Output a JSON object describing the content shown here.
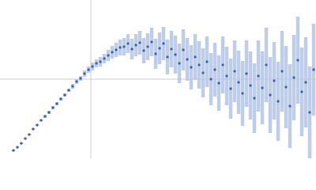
{
  "chart_data": {
    "type": "scatter",
    "xlim": [
      0,
      400
    ],
    "ylim": [
      0,
      200
    ],
    "vline": 115,
    "hline": 100,
    "color": "#3a62b8",
    "error_color": "#aec3e6",
    "x": [
      17,
      22,
      27,
      32,
      37,
      42,
      47,
      52,
      57,
      62,
      67,
      72,
      77,
      82,
      87,
      92,
      97,
      102,
      107,
      112,
      117,
      122,
      127,
      132,
      137,
      142,
      147,
      152,
      157,
      162,
      167,
      172,
      177,
      182,
      187,
      192,
      197,
      202,
      207,
      212,
      217,
      222,
      227,
      232,
      237,
      242,
      247,
      252,
      257,
      262,
      267,
      272,
      277,
      282,
      287,
      292,
      297,
      302,
      307,
      312,
      317,
      322,
      327,
      332,
      337,
      342,
      347,
      352,
      357,
      362,
      367,
      372,
      377,
      382,
      387,
      392,
      397
    ],
    "values": [
      10,
      14,
      19,
      25,
      30,
      37,
      42,
      48,
      53,
      58,
      64,
      69,
      75,
      80,
      86,
      91,
      97,
      101,
      107,
      112,
      116,
      120,
      122,
      126,
      130,
      134,
      137,
      140,
      141,
      145,
      138,
      143,
      146,
      136,
      141,
      147,
      132,
      139,
      145,
      128,
      138,
      131,
      120,
      137,
      125,
      115,
      128,
      118,
      108,
      122,
      100,
      112,
      95,
      118,
      104,
      88,
      110,
      96,
      82,
      107,
      92,
      76,
      104,
      89,
      118,
      80,
      98,
      72,
      110,
      90,
      66,
      102,
      124,
      84,
      96,
      58,
      112
    ],
    "errors": [
      1,
      1,
      1,
      1,
      1,
      1,
      1,
      1,
      2,
      2,
      2,
      2,
      2,
      2,
      2,
      3,
      3,
      3,
      4,
      4,
      5,
      5,
      6,
      6,
      7,
      8,
      9,
      10,
      11,
      12,
      13,
      14,
      15,
      16,
      17,
      18,
      19,
      20,
      21,
      22,
      23,
      24,
      25,
      26,
      27,
      28,
      29,
      30,
      31,
      32,
      33,
      34,
      35,
      36,
      37,
      38,
      39,
      40,
      41,
      42,
      43,
      44,
      45,
      46,
      47,
      48,
      49,
      50,
      51,
      52,
      53,
      54,
      55,
      56,
      57,
      58,
      58
    ]
  }
}
